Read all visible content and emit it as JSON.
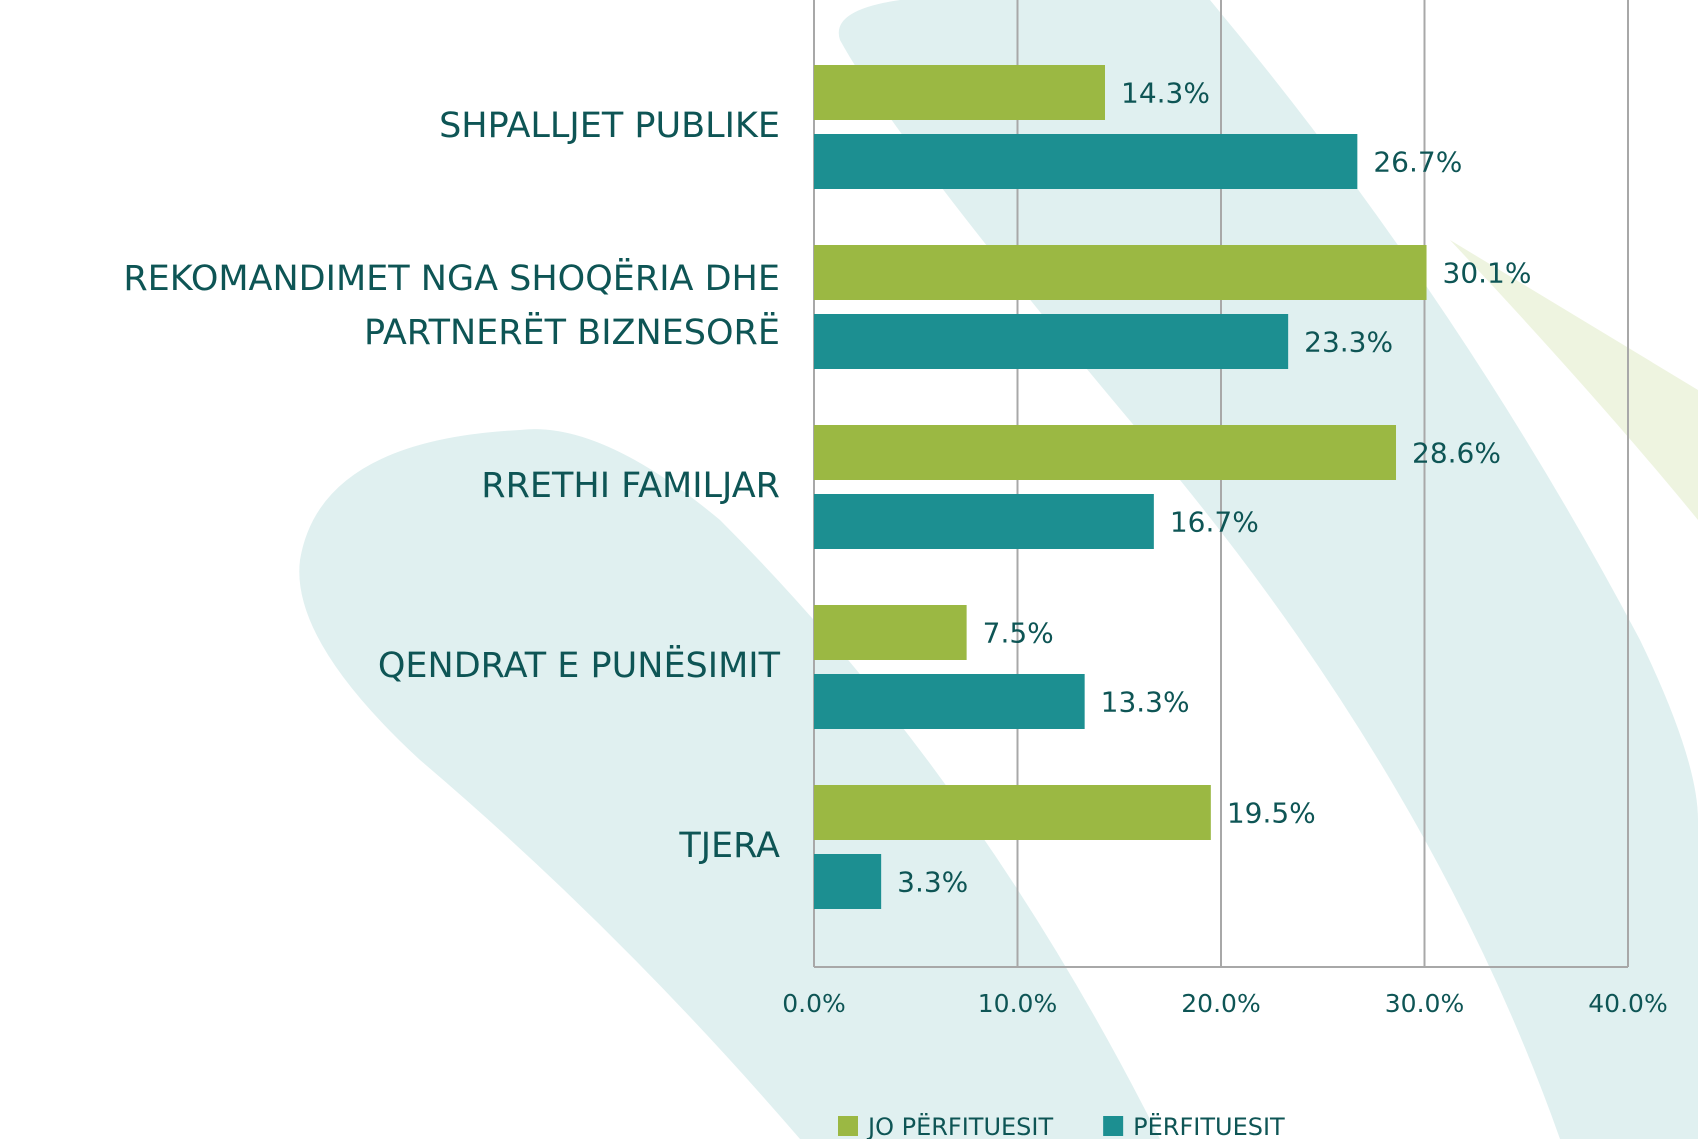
{
  "chart_data": {
    "type": "bar",
    "orientation": "horizontal",
    "categories": [
      "SHPALLJET PUBLIKE",
      "REKOMANDIMET NGA SHOQËRIA DHE PARTNERËT BIZNESORË",
      "RRETHI FAMILJAR",
      "QENDRAT E PUNËSIMIT",
      "TJERA"
    ],
    "series": [
      {
        "name": "JO PËRFITUESIT",
        "color": "#9bb843",
        "values": [
          14.3,
          30.1,
          28.6,
          7.5,
          19.5
        ],
        "value_labels": [
          "14.3%",
          "30.1%",
          "28.6%",
          "7.5%",
          "19.5%"
        ]
      },
      {
        "name": "PËRFITUESIT",
        "color": "#1c8f91",
        "values": [
          26.7,
          23.3,
          16.7,
          13.3,
          3.3
        ],
        "value_labels": [
          "26.7%",
          "23.3%",
          "16.7%",
          "13.3%",
          "3.3%"
        ]
      }
    ],
    "xlim": [
      0,
      40
    ],
    "xticks": [
      {
        "value": 0,
        "label": "0.0%"
      },
      {
        "value": 10,
        "label": "10.0%"
      },
      {
        "value": 20,
        "label": "20.0%"
      },
      {
        "value": 30,
        "label": "30.0%"
      },
      {
        "value": 40,
        "label": "40.0%"
      }
    ],
    "grid": true,
    "legend": "bottom"
  }
}
